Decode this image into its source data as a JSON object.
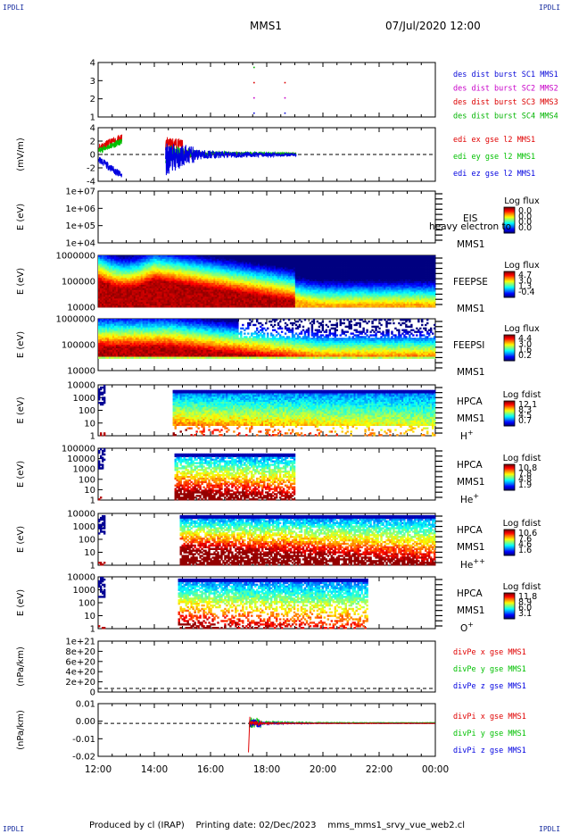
{
  "header": {
    "corner_label": "IPDLI",
    "spacecraft": "MMS1",
    "datetime": "07/Jul/2020 12:00"
  },
  "footer": {
    "produced_by": "Produced by cl (IRAP)",
    "printing_date": "Printing date: 02/Dec/2023",
    "script": "mms_mms1_srvy_vue_web2.cl"
  },
  "colors": {
    "mms1": "#0a0ad8",
    "mms2": "#c800c8",
    "mms3": "#dc0000",
    "mms4": "#00b400",
    "x_comp": "#e00000",
    "y_comp": "#00c000",
    "z_comp": "#0000e0"
  },
  "chart_data": {
    "type": "multi-panel time series",
    "x_axis": {
      "start": "12:00",
      "end": "00:00",
      "ticks": [
        "12:00",
        "14:00",
        "16:00",
        "18:00",
        "20:00",
        "22:00",
        "00:00"
      ]
    },
    "panels": [
      {
        "id": "burst",
        "type": "scatter",
        "yticks": [
          "4",
          "3",
          "2",
          "1"
        ],
        "legend": [
          "des dist burst SC1 MMS1",
          "des dist burst SC2 MMS2",
          "des dist burst SC3 MMS3",
          "des dist burst SC4 MMS4"
        ],
        "series": [
          {
            "name": "des dist burst SC1 MMS1",
            "y": 1,
            "times": [
              17.55,
              18.65
            ]
          },
          {
            "name": "des dist burst SC2 MMS2",
            "y": 2,
            "times": [
              17.55,
              18.65
            ]
          },
          {
            "name": "des dist burst SC3 MMS3",
            "y": 3,
            "times": [
              17.55,
              18.65
            ]
          },
          {
            "name": "des dist burst SC4 MMS4",
            "y": 4,
            "times": [
              17.55
            ]
          }
        ]
      },
      {
        "id": "edi",
        "type": "line",
        "ylabel": "(mV/m)",
        "yticks": [
          "4",
          "2",
          "0",
          "-2",
          "-4"
        ],
        "legend": [
          "edi ex gse l2 MMS1",
          "edi ey gse l2 MMS1",
          "edi ez gse l2 MMS1"
        ],
        "data_ranges": [
          [
            12.0,
            12.9
          ],
          [
            14.35,
            19.05
          ]
        ]
      },
      {
        "id": "eis",
        "type": "heatmap",
        "ylabel": "E (eV)",
        "yticks": [
          "1e+07",
          "1e+06",
          "1e+05",
          "1e+04"
        ],
        "instrument": "EIS",
        "extra_label": "heavy electron to",
        "spacecraft_label": "MMS1",
        "cbar_title": "Log flux",
        "cbar_ticks": [
          "0.0",
          "0.0",
          "0.0",
          "0.0"
        ]
      },
      {
        "id": "feepse",
        "type": "heatmap",
        "ylabel": "E (eV)",
        "yticks": [
          "1000000",
          "100000",
          "10000"
        ],
        "instrument": "FEEPSE",
        "spacecraft_label": "MMS1",
        "cbar_title": "Log flux",
        "cbar_ticks": [
          "4.7",
          "3.0",
          "1.3",
          "-0.4"
        ]
      },
      {
        "id": "feepsi",
        "type": "heatmap",
        "ylabel": "E (eV)",
        "yticks": [
          "1000000",
          "100000",
          "10000"
        ],
        "instrument": "FEEPSI",
        "spacecraft_label": "MMS1",
        "cbar_title": "Log flux",
        "cbar_ticks": [
          "4.4",
          "3.0",
          "1.6",
          "0.2"
        ]
      },
      {
        "id": "hpca_h",
        "type": "heatmap",
        "ylabel": "E (eV)",
        "yticks": [
          "10000",
          "1000",
          "100",
          "10",
          "1"
        ],
        "instrument": "HPCA",
        "spacecraft_label": "MMS1",
        "species": "H",
        "charge": "+",
        "cbar_title": "Log fdist",
        "cbar_ticks": [
          "12.1",
          "8.3",
          "4.5",
          "0.7"
        ]
      },
      {
        "id": "hpca_he1",
        "type": "heatmap",
        "ylabel": "E (eV)",
        "yticks": [
          "100000",
          "10000",
          "1000",
          "100",
          "10",
          "1"
        ],
        "instrument": "HPCA",
        "spacecraft_label": "MMS1",
        "species": "He",
        "charge": "+",
        "cbar_title": "Log fdist",
        "cbar_ticks": [
          "10.8",
          "7.8",
          "4.8",
          "1.9"
        ]
      },
      {
        "id": "hpca_he2",
        "type": "heatmap",
        "ylabel": "E (eV)",
        "yticks": [
          "10000",
          "1000",
          "100",
          "10",
          "1"
        ],
        "instrument": "HPCA",
        "spacecraft_label": "MMS1",
        "species": "He",
        "charge": "++",
        "cbar_title": "Log fdist",
        "cbar_ticks": [
          "10.6",
          "7.6",
          "4.6",
          "1.6"
        ]
      },
      {
        "id": "hpca_o",
        "type": "heatmap",
        "ylabel": "E (eV)",
        "yticks": [
          "10000",
          "1000",
          "100",
          "10",
          "1"
        ],
        "instrument": "HPCA",
        "spacecraft_label": "MMS1",
        "species": "O",
        "charge": "+",
        "cbar_title": "Log fdist",
        "cbar_ticks": [
          "11.8",
          "8.9",
          "6.0",
          "3.1"
        ]
      },
      {
        "id": "divpe",
        "type": "line",
        "ylabel": "(nPa/km)",
        "yticks": [
          "1e+21",
          "8e+20",
          "6e+20",
          "4e+20",
          "2e+20",
          "0"
        ],
        "legend": [
          "divPe x gse MMS1",
          "divPe y gse MMS1",
          "divPe z gse MMS1"
        ]
      },
      {
        "id": "divpi",
        "type": "line",
        "ylabel": "(nPa/km)",
        "yticks": [
          "0.01",
          "0.00",
          "-0.01",
          "-0.02"
        ],
        "legend": [
          "divPi x gse MMS1",
          "divPi y gse MMS1",
          "divPi z gse MMS1"
        ],
        "data_range": [
          17.35,
          24.0
        ]
      }
    ]
  }
}
